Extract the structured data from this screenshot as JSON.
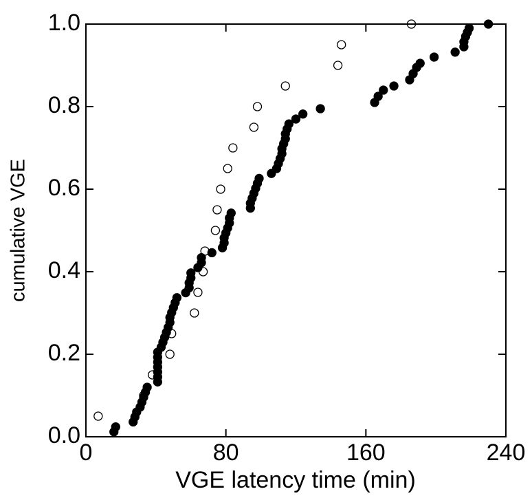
{
  "chart_data": {
    "type": "scatter",
    "xlabel": "VGE latency time (min)",
    "ylabel": "cumulative VGE",
    "xlim": [
      0,
      240
    ],
    "ylim": [
      0,
      1
    ],
    "xticks": [
      0,
      80,
      160,
      240
    ],
    "yticks": [
      {
        "value": 0,
        "label": "0.0"
      },
      0.2,
      0.4,
      0.6,
      0.8,
      {
        "value": 1,
        "label": "1.0"
      }
    ],
    "series": [
      {
        "color": "#000000",
        "filled": false,
        "x": [
          7,
          33,
          38,
          48,
          49,
          62,
          64,
          67,
          68,
          74,
          75,
          77,
          81,
          84,
          96,
          98,
          114,
          144,
          146,
          186
        ],
        "values": [
          0.05,
          0.1,
          0.15,
          0.2,
          0.25,
          0.3,
          0.35,
          0.4,
          0.45,
          0.5,
          0.55,
          0.6,
          0.65,
          0.7,
          0.75,
          0.8,
          0.85,
          0.9,
          0.95,
          1.0
        ]
      },
      {
        "color": "#000000",
        "filled": true,
        "x": [
          16,
          17,
          27,
          28,
          29,
          31,
          32,
          33,
          34,
          35,
          41,
          41,
          41,
          41,
          41,
          41,
          41,
          43,
          44,
          45,
          46,
          47,
          48,
          48,
          49,
          50,
          51,
          52,
          57,
          59,
          59,
          60,
          60,
          64,
          66,
          66,
          72,
          78,
          79,
          79,
          80,
          81,
          82,
          82,
          83,
          94,
          94,
          95,
          96,
          97,
          98,
          99,
          106,
          109,
          110,
          111,
          112,
          112,
          113,
          114,
          114,
          115,
          116,
          120,
          124,
          134,
          165,
          167,
          170,
          176,
          185,
          187,
          189,
          191,
          199,
          211,
          216,
          216,
          217,
          218,
          219,
          230
        ],
        "values": [
          0.012,
          0.024,
          0.036,
          0.048,
          0.06,
          0.072,
          0.084,
          0.096,
          0.108,
          0.12,
          0.133,
          0.145,
          0.157,
          0.169,
          0.181,
          0.193,
          0.205,
          0.217,
          0.229,
          0.241,
          0.253,
          0.265,
          0.277,
          0.289,
          0.301,
          0.313,
          0.325,
          0.337,
          0.349,
          0.361,
          0.373,
          0.385,
          0.397,
          0.41,
          0.422,
          0.434,
          0.446,
          0.458,
          0.47,
          0.482,
          0.494,
          0.506,
          0.518,
          0.53,
          0.542,
          0.554,
          0.566,
          0.578,
          0.59,
          0.602,
          0.614,
          0.626,
          0.638,
          0.65,
          0.662,
          0.674,
          0.686,
          0.698,
          0.71,
          0.722,
          0.734,
          0.746,
          0.758,
          0.77,
          0.782,
          0.795,
          0.81,
          0.825,
          0.84,
          0.85,
          0.865,
          0.88,
          0.895,
          0.905,
          0.92,
          0.932,
          0.945,
          0.957,
          0.97,
          0.98,
          0.99,
          1.0
        ]
      }
    ]
  }
}
